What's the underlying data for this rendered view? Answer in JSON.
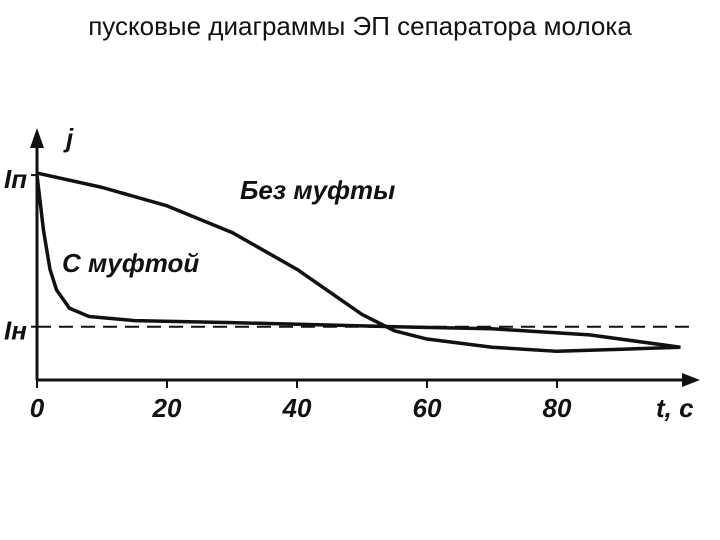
{
  "chart_data": {
    "type": "line",
    "title": "пусковые диаграммы ЭП сепаратора молока",
    "x_label": "t, c",
    "y_label": "j",
    "xlim": [
      0,
      100
    ],
    "xticks": [
      0,
      20,
      40,
      60,
      80
    ],
    "ylim": [
      0,
      1.22
    ],
    "yticks": [
      {
        "value": 0.26,
        "label": "Iн"
      },
      {
        "value": 1.0,
        "label": "Iп"
      }
    ],
    "reference_line": {
      "value": 0.26,
      "dashed": true
    },
    "series": [
      {
        "name": "Без муфты",
        "color": "#111111",
        "x": [
          0,
          10,
          20,
          30,
          40,
          50,
          55,
          60,
          70,
          80,
          90,
          99
        ],
        "values": [
          1.01,
          0.94,
          0.85,
          0.72,
          0.54,
          0.32,
          0.24,
          0.2,
          0.16,
          0.14,
          0.15,
          0.16
        ]
      },
      {
        "name": "С муфтой",
        "color": "#111111",
        "x": [
          0,
          1,
          2,
          3,
          5,
          8,
          15,
          30,
          55,
          70,
          85,
          99
        ],
        "values": [
          1.0,
          0.73,
          0.54,
          0.44,
          0.35,
          0.31,
          0.29,
          0.28,
          0.26,
          0.25,
          0.22,
          0.16
        ]
      }
    ]
  }
}
